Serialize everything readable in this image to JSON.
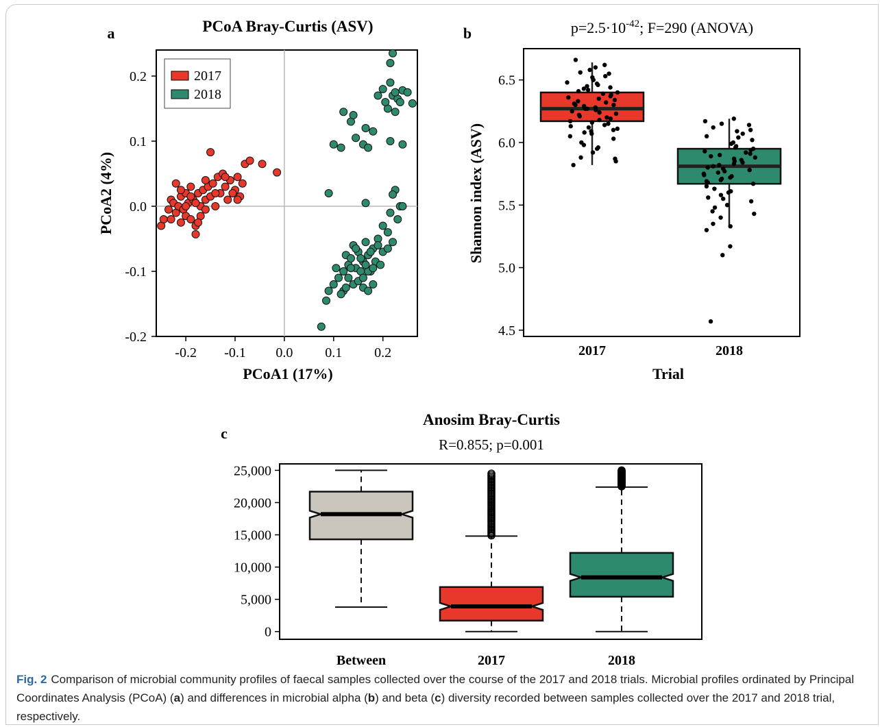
{
  "panel_a": {
    "letter": "a",
    "title": "PCoA Bray-Curtis (ASV)",
    "xlabel": "PCoA1 (17%)",
    "ylabel": "PCoA2 (4%)",
    "x_ticks": [
      "-0.2",
      "-0.1",
      "0.0",
      "0.1",
      "0.2"
    ],
    "y_ticks": [
      "0.2",
      "0.1",
      "0.0",
      "-0.1",
      "-0.2"
    ],
    "legend": [
      {
        "label": "2017",
        "color": "#e8382b"
      },
      {
        "label": "2018",
        "color": "#2e8a6e"
      }
    ]
  },
  "panel_b": {
    "letter": "b",
    "stat_prefix": "p=2.5·10",
    "stat_exp": "-42",
    "stat_suffix": "; F=290 (ANOVA)",
    "xlabel": "Trial",
    "ylabel": "Shannon index (ASV)",
    "y_ticks": [
      "6.5",
      "6.0",
      "5.5",
      "5.0",
      "4.5"
    ],
    "categories": [
      "2017",
      "2018"
    ]
  },
  "panel_c": {
    "letter": "c",
    "title": "Anosim Bray-Curtis",
    "subtitle": "R=0.855; p=0.001",
    "y_ticks": [
      "25,000",
      "20,000",
      "15,000",
      "10,000",
      "5,000",
      "0"
    ],
    "categories": [
      "Between",
      "2017",
      "2018"
    ]
  },
  "caption": {
    "fig_label": "Fig. 2",
    "text_1": "Comparison of microbial community profiles of faecal samples collected over the course of the 2017 and 2018 trials. Microbial profiles ordinated by Principal Coordinates Analysis (PCoA) (",
    "bold_a": "a",
    "text_2": ") and differences in microbial alpha (",
    "bold_b": "b",
    "text_3": ") and beta (",
    "bold_c": "c",
    "text_4": ") diversity recorded between samples collected over the 2017 and 2018 trial, respectively."
  },
  "chart_data": [
    {
      "type": "scatter",
      "title": "PCoA Bray-Curtis (ASV)",
      "xlabel": "PCoA1 (17%)",
      "ylabel": "PCoA2 (4%)",
      "xlim": [
        -0.26,
        0.27
      ],
      "ylim": [
        -0.2,
        0.24
      ],
      "legend_position": "top-left",
      "series": [
        {
          "name": "2017",
          "color": "#e8382b",
          "points": [
            [
              -0.25,
              -0.03
            ],
            [
              -0.245,
              -0.02
            ],
            [
              -0.235,
              -0.005
            ],
            [
              -0.23,
              0.01
            ],
            [
              -0.23,
              -0.02
            ],
            [
              -0.225,
              0.005
            ],
            [
              -0.22,
              0.035
            ],
            [
              -0.22,
              -0.01
            ],
            [
              -0.215,
              0.0
            ],
            [
              -0.21,
              -0.025
            ],
            [
              -0.21,
              0.015
            ],
            [
              -0.205,
              -0.005
            ],
            [
              -0.2,
              0.02
            ],
            [
              -0.2,
              -0.015
            ],
            [
              -0.195,
              0.005
            ],
            [
              -0.19,
              0.03
            ],
            [
              -0.19,
              -0.02
            ],
            [
              -0.185,
              0.01
            ],
            [
              -0.18,
              -0.03
            ],
            [
              -0.18,
              -0.043
            ],
            [
              -0.175,
              0.02
            ],
            [
              -0.17,
              0.0
            ],
            [
              -0.17,
              -0.015
            ],
            [
              -0.165,
              0.025
            ],
            [
              -0.16,
              -0.005
            ],
            [
              -0.16,
              0.01
            ],
            [
              -0.155,
              0.03
            ],
            [
              -0.15,
              0.083
            ],
            [
              -0.15,
              0.015
            ],
            [
              -0.145,
              0.035
            ],
            [
              -0.14,
              0.0
            ],
            [
              -0.135,
              0.045
            ],
            [
              -0.13,
              0.02
            ],
            [
              -0.125,
              0.05
            ],
            [
              -0.12,
              0.03
            ],
            [
              -0.115,
              0.01
            ],
            [
              -0.11,
              0.04
            ],
            [
              -0.1,
              0.025
            ],
            [
              -0.095,
              0.045
            ],
            [
              -0.09,
              0.015
            ],
            [
              -0.085,
              0.035
            ],
            [
              -0.08,
              0.065
            ],
            [
              -0.07,
              0.07
            ],
            [
              -0.045,
              0.065
            ],
            [
              -0.015,
              0.052
            ],
            [
              -0.21,
              0.025
            ],
            [
              -0.2,
              0.0
            ],
            [
              -0.19,
              0.015
            ],
            [
              -0.18,
              0.005
            ],
            [
              -0.175,
              -0.025
            ],
            [
              -0.16,
              0.04
            ],
            [
              -0.14,
              0.02
            ],
            [
              -0.12,
              0.045
            ],
            [
              -0.105,
              0.02
            ],
            [
              -0.095,
              0.01
            ]
          ]
        },
        {
          "name": "2018",
          "color": "#2e8a6e",
          "points": [
            [
              0.22,
              0.235
            ],
            [
              0.215,
              0.22
            ],
            [
              0.2,
              0.18
            ],
            [
              0.21,
              0.15
            ],
            [
              0.22,
              0.17
            ],
            [
              0.23,
              0.165
            ],
            [
              0.19,
              0.17
            ],
            [
              0.205,
              0.16
            ],
            [
              0.215,
              0.19
            ],
            [
              0.225,
              0.175
            ],
            [
              0.24,
              0.178
            ],
            [
              0.25,
              0.175
            ],
            [
              0.235,
              0.16
            ],
            [
              0.26,
              0.158
            ],
            [
              0.225,
              0.145
            ],
            [
              0.12,
              0.145
            ],
            [
              0.135,
              0.13
            ],
            [
              0.14,
              0.14
            ],
            [
              0.18,
              0.115
            ],
            [
              0.165,
              0.12
            ],
            [
              0.145,
              0.105
            ],
            [
              0.1,
              0.095
            ],
            [
              0.115,
              0.09
            ],
            [
              0.16,
              0.095
            ],
            [
              0.17,
              0.09
            ],
            [
              0.215,
              0.1
            ],
            [
              0.24,
              0.095
            ],
            [
              0.09,
              0.02
            ],
            [
              0.165,
              0.005
            ],
            [
              0.225,
              0.025
            ],
            [
              0.22,
              0.018
            ],
            [
              0.235,
              0.0
            ],
            [
              0.24,
              0.0
            ],
            [
              0.215,
              -0.01
            ],
            [
              0.23,
              -0.02
            ],
            [
              0.2,
              -0.03
            ],
            [
              0.21,
              -0.04
            ],
            [
              0.19,
              -0.05
            ],
            [
              0.22,
              -0.055
            ],
            [
              0.075,
              -0.185
            ],
            [
              0.085,
              -0.145
            ],
            [
              0.09,
              -0.13
            ],
            [
              0.1,
              -0.12
            ],
            [
              0.11,
              -0.11
            ],
            [
              0.12,
              -0.1
            ],
            [
              0.13,
              -0.09
            ],
            [
              0.12,
              -0.13
            ],
            [
              0.125,
              -0.075
            ],
            [
              0.135,
              -0.08
            ],
            [
              0.14,
              -0.06
            ],
            [
              0.145,
              -0.095
            ],
            [
              0.15,
              -0.07
            ],
            [
              0.155,
              -0.1
            ],
            [
              0.16,
              -0.085
            ],
            [
              0.165,
              -0.055
            ],
            [
              0.17,
              -0.075
            ],
            [
              0.175,
              -0.1
            ],
            [
              0.18,
              -0.065
            ],
            [
              0.185,
              -0.085
            ],
            [
              0.19,
              -0.06
            ],
            [
              0.195,
              -0.09
            ],
            [
              0.13,
              -0.11
            ],
            [
              0.14,
              -0.12
            ],
            [
              0.15,
              -0.115
            ],
            [
              0.16,
              -0.125
            ],
            [
              0.17,
              -0.1
            ],
            [
              0.18,
              -0.12
            ],
            [
              0.135,
              -0.095
            ],
            [
              0.145,
              -0.065
            ],
            [
              0.155,
              -0.08
            ],
            [
              0.165,
              -0.09
            ],
            [
              0.175,
              -0.07
            ],
            [
              0.125,
              -0.125
            ],
            [
              0.115,
              -0.135
            ],
            [
              0.105,
              -0.095
            ],
            [
              0.16,
              -0.11
            ],
            [
              0.17,
              -0.13
            ],
            [
              0.18,
              -0.095
            ],
            [
              0.2,
              -0.07
            ],
            [
              0.21,
              -0.065
            ]
          ]
        }
      ]
    },
    {
      "type": "box",
      "title": "",
      "subtitle": "p=2.5·10-42; F=290 (ANOVA)",
      "xlabel": "Trial",
      "ylabel": "Shannon index (ASV)",
      "ylim": [
        4.45,
        6.75
      ],
      "categories": [
        "2017",
        "2018"
      ],
      "boxes": [
        {
          "name": "2017",
          "color": "#e8382b",
          "whisker_low": 5.82,
          "q1": 6.17,
          "median": 6.27,
          "q3": 6.4,
          "whisker_high": 6.64
        },
        {
          "name": "2018",
          "color": "#2e8a6e",
          "whisker_low": 5.32,
          "q1": 5.67,
          "median": 5.81,
          "q3": 5.95,
          "whisker_high": 6.19
        }
      ],
      "points_2017": [
        6.66,
        6.62,
        6.6,
        6.58,
        6.56,
        6.55,
        6.53,
        6.52,
        6.5,
        6.5,
        6.48,
        6.47,
        6.46,
        6.45,
        6.44,
        6.43,
        6.42,
        6.41,
        6.4,
        6.39,
        6.38,
        6.37,
        6.36,
        6.35,
        6.34,
        6.33,
        6.32,
        6.31,
        6.3,
        6.3,
        6.29,
        6.28,
        6.27,
        6.27,
        6.26,
        6.25,
        6.24,
        6.23,
        6.22,
        6.21,
        6.2,
        6.19,
        6.18,
        6.17,
        6.16,
        6.15,
        6.14,
        6.13,
        6.12,
        6.11,
        6.1,
        6.09,
        6.08,
        6.07,
        6.05,
        6.03,
        6.0,
        5.98,
        5.96,
        5.95,
        5.92,
        5.88,
        5.87,
        5.85,
        5.82
      ],
      "points_2018": [
        6.19,
        6.17,
        6.15,
        6.14,
        6.12,
        6.1,
        6.09,
        6.07,
        6.05,
        6.04,
        6.02,
        6.0,
        5.99,
        5.97,
        5.96,
        5.95,
        5.94,
        5.93,
        5.92,
        5.91,
        5.9,
        5.89,
        5.88,
        5.87,
        5.86,
        5.85,
        5.84,
        5.83,
        5.82,
        5.81,
        5.8,
        5.79,
        5.78,
        5.77,
        5.76,
        5.75,
        5.74,
        5.73,
        5.72,
        5.71,
        5.7,
        5.69,
        5.68,
        5.67,
        5.65,
        5.63,
        5.61,
        5.6,
        5.58,
        5.56,
        5.55,
        5.53,
        5.5,
        5.48,
        5.45,
        5.43,
        5.4,
        5.35,
        5.33,
        5.3,
        5.17,
        5.1,
        4.57
      ]
    },
    {
      "type": "box",
      "title": "Anosim Bray-Curtis",
      "subtitle": "R=0.855; p=0.001",
      "ylim": [
        -1200,
        26000
      ],
      "categories": [
        "Between",
        "2017",
        "2018"
      ],
      "boxes": [
        {
          "name": "Between",
          "color": "#cbc6bd",
          "whisker_low": 3800,
          "q1": 14300,
          "median": 18200,
          "q3": 21700,
          "whisker_high": 25000
        },
        {
          "name": "2017",
          "color": "#e8382b",
          "whisker_low": 0,
          "q1": 1700,
          "median": 3900,
          "q3": 6900,
          "whisker_high": 14800,
          "outliers_from": 14900,
          "outliers_to": 24500
        },
        {
          "name": "2018",
          "color": "#2e8a6e",
          "whisker_low": 0,
          "q1": 5400,
          "median": 8400,
          "q3": 12200,
          "whisker_high": 22400,
          "outliers_from": 22500,
          "outliers_to": 25000
        }
      ]
    }
  ]
}
